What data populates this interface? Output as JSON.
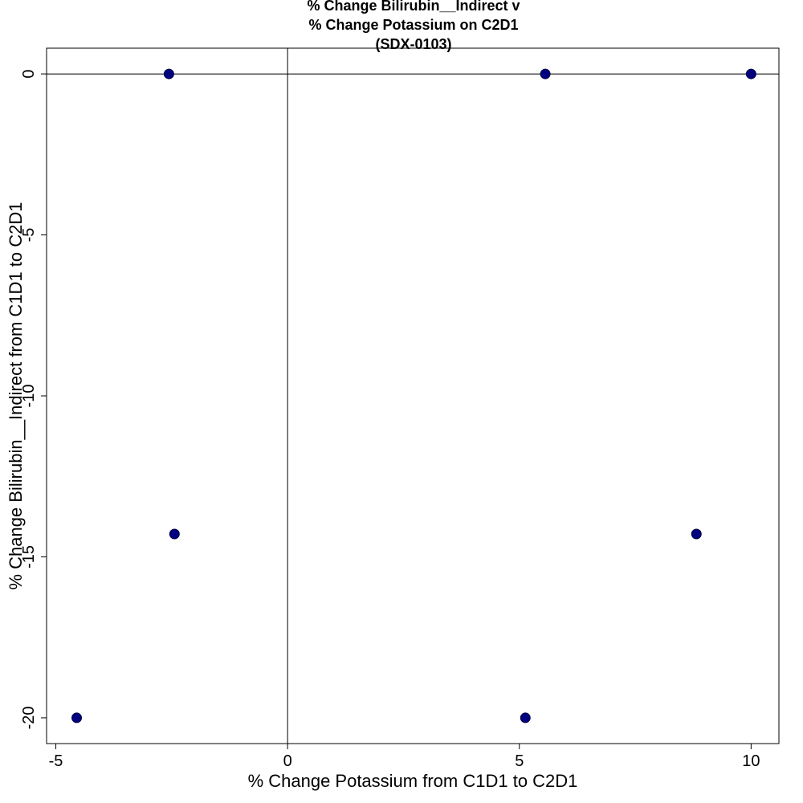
{
  "chart_data": {
    "type": "scatter",
    "title_lines": [
      "% Change Bilirubin__Indirect v",
      "% Change Potassium on C2D1",
      "(SDX-0103)"
    ],
    "xlabel": "% Change Potassium from C1D1 to C2D1",
    "ylabel": "% Change Bilirubin__Indirect from C1D1 to C2D1",
    "xlim": [
      -5.2,
      10.6
    ],
    "ylim": [
      -20.8,
      0.8
    ],
    "xticks": [
      -5,
      0,
      5,
      10
    ],
    "yticks": [
      0,
      -5,
      -10,
      -15,
      -20
    ],
    "reference_lines": {
      "x": 0,
      "y": 0
    },
    "grid": false,
    "marker_color": "#000080",
    "points": [
      {
        "x": -2.56,
        "y": 0
      },
      {
        "x": -2.44,
        "y": -14.29
      },
      {
        "x": -4.55,
        "y": -20
      },
      {
        "x": 5.56,
        "y": 0
      },
      {
        "x": 10.0,
        "y": 0
      },
      {
        "x": 8.82,
        "y": -14.29
      },
      {
        "x": 5.13,
        "y": -20
      }
    ]
  }
}
